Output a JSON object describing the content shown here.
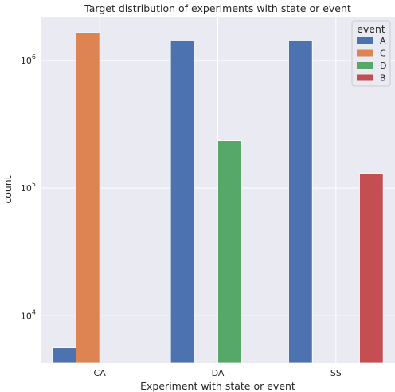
{
  "chart_data": {
    "type": "bar",
    "title": "Target distribution of experiments with state or event",
    "xlabel": "Experiment with state or event",
    "ylabel": "count",
    "yscale": "log",
    "ylim": [
      4300,
      2200000
    ],
    "yticks": [
      {
        "value": 10000,
        "base": "10",
        "exp": "4"
      },
      {
        "value": 100000,
        "base": "10",
        "exp": "5"
      },
      {
        "value": 1000000,
        "base": "10",
        "exp": "6"
      }
    ],
    "categories": [
      "CA",
      "DA",
      "SS"
    ],
    "grid": true,
    "legend": {
      "title": "event",
      "placement": "top-right"
    },
    "series": [
      {
        "name": "A",
        "color": "#4c72b0",
        "values": [
          5600,
          1420000,
          1420000
        ]
      },
      {
        "name": "C",
        "color": "#dd8452",
        "values": [
          1650000,
          null,
          null
        ]
      },
      {
        "name": "D",
        "color": "#55a868",
        "values": [
          null,
          235000,
          null
        ]
      },
      {
        "name": "B",
        "color": "#c44e52",
        "values": [
          null,
          null,
          130000
        ]
      }
    ]
  }
}
